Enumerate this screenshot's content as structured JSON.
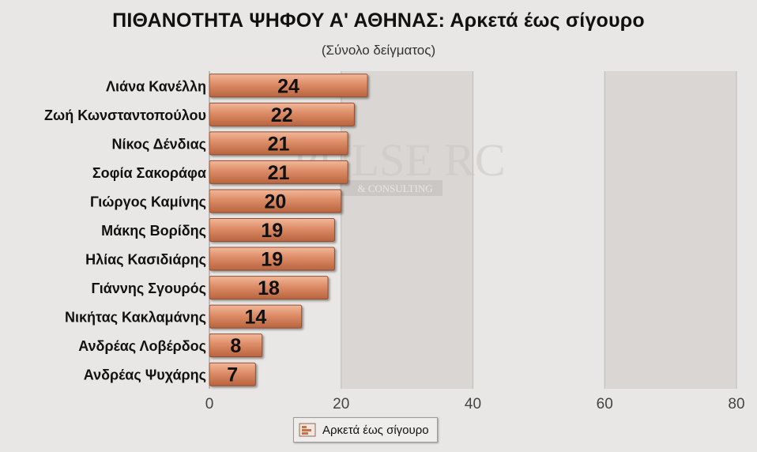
{
  "chart_data": {
    "type": "bar",
    "orientation": "horizontal",
    "title": "ΠΙΘΑΝΟΤΗΤΑ ΨΗΦΟΥ Α' ΑΘΗΝΑΣ: Αρκετά έως σίγουρο",
    "subtitle": "(Σύνολο δείγματος)",
    "categories": [
      "Λιάνα Κανέλλη",
      "Ζωή Κωνσταντοπούλου",
      "Νίκος Δένδιας",
      "Σοφία Σακοράφα",
      "Γιώργος Καμίνης",
      "Μάκης Βορίδης",
      "Ηλίας Κασιδιάρης",
      "Γιάννης Σγουρός",
      "Νικήτας Κακλαμάνης",
      "Ανδρέας Λοβέρδος",
      "Ανδρέας Ψυχάρης"
    ],
    "series": [
      {
        "name": "Αρκετά έως σίγουρο",
        "values": [
          24,
          22,
          21,
          21,
          20,
          19,
          19,
          18,
          14,
          8,
          7
        ]
      }
    ],
    "xlim": [
      0,
      80
    ],
    "x_ticks": [
      "0",
      "20",
      "40",
      "60",
      "80"
    ],
    "data_labels": true,
    "legend_position": "bottom",
    "bar_color": "#d98a66",
    "band_color": "#d9d6d3",
    "watermark": "PULSE RC",
    "watermark_sub": "& CONSULTING"
  }
}
